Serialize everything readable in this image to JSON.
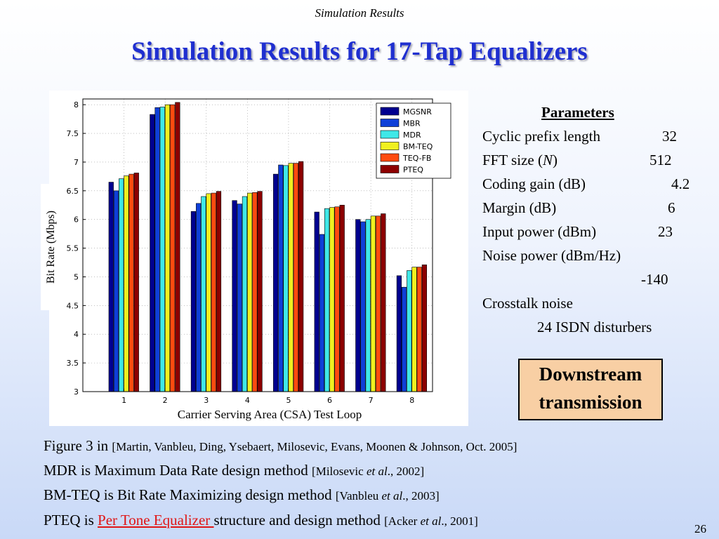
{
  "header": "Simulation Results",
  "title": "Simulation Results for 17-Tap Equalizers",
  "chart_data": {
    "type": "bar",
    "xlabel": "Carrier Serving Area (CSA) Test Loop",
    "ylabel": "Bit Rate (Mbps)",
    "ylim": [
      3,
      8.1
    ],
    "yticks": [
      "3",
      "3.5",
      "4",
      "4.5",
      "5",
      "5.5",
      "6",
      "6.5",
      "7",
      "7.5",
      "8"
    ],
    "grid": true,
    "legend_position": "top-right",
    "categories": [
      "1",
      "2",
      "3",
      "4",
      "5",
      "6",
      "7",
      "8"
    ],
    "series": [
      {
        "name": "MGSNR",
        "color": "#00008f",
        "values": [
          6.65,
          7.83,
          6.14,
          6.33,
          6.79,
          6.13,
          6.0,
          5.02
        ]
      },
      {
        "name": "MBR",
        "color": "#0f3fd8",
        "values": [
          6.5,
          7.95,
          6.28,
          6.27,
          6.95,
          5.74,
          5.96,
          4.82
        ]
      },
      {
        "name": "MDR",
        "color": "#3fe8e8",
        "values": [
          6.71,
          7.96,
          6.4,
          6.4,
          6.94,
          6.19,
          6.0,
          5.11
        ]
      },
      {
        "name": "BM-TEQ",
        "color": "#f0f020",
        "values": [
          6.76,
          8.0,
          6.45,
          6.46,
          6.98,
          6.21,
          6.06,
          5.17
        ]
      },
      {
        "name": "TEQ-FB",
        "color": "#ff4b10",
        "values": [
          6.79,
          8.0,
          6.46,
          6.47,
          6.98,
          6.22,
          6.06,
          5.17
        ]
      },
      {
        "name": "PTEQ",
        "color": "#8c0000",
        "values": [
          6.81,
          8.04,
          6.49,
          6.49,
          7.01,
          6.25,
          6.1,
          5.21
        ]
      }
    ]
  },
  "parameters": {
    "heading": "Parameters",
    "rows": [
      {
        "label": "Cyclic prefix length",
        "value": "32"
      },
      {
        "label": "FFT size (",
        "label_italic": "N",
        "label_end": ")",
        "value": "512"
      },
      {
        "label": "Coding gain (dB)",
        "value": "4.2"
      },
      {
        "label": "Margin (dB)",
        "value": "6"
      },
      {
        "label": "Input power (dBm)",
        "value": "23"
      },
      {
        "label": "Noise power (dBm/Hz)",
        "value": "-140"
      },
      {
        "label": "Crosstalk noise",
        "value": "24 ISDN disturbers"
      }
    ]
  },
  "downstream": {
    "line1": "Downstream",
    "line2": "transmission"
  },
  "captions": [
    {
      "main": "Figure 3 in ",
      "ref": "[Martin, Vanbleu, Ding, Ysebaert, Milosevic, Evans, Moonen & Johnson, Oct. 2005]"
    },
    {
      "main": "MDR is Maximum Data Rate design method ",
      "ref_a": "[Milosevic ",
      "ref_i": "et al",
      "ref_b": "., 2002]"
    },
    {
      "main": "BM-TEQ is Bit Rate Maximizing design method ",
      "ref_a": "[Vanbleu ",
      "ref_i": "et al",
      "ref_b": "., 2003]"
    },
    {
      "main_a": "PTEQ is ",
      "link": "Per Tone Equalizer ",
      "main_b": "structure and design method ",
      "ref_a": "[Acker ",
      "ref_i": "et al",
      "ref_b": "., 2001]"
    }
  ],
  "page_number": "26"
}
